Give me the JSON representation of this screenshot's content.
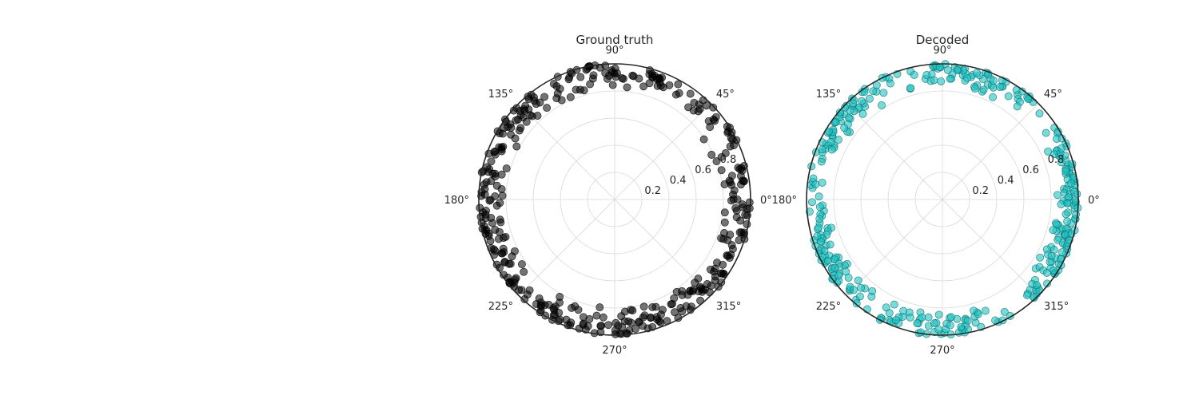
{
  "chart_data": [
    {
      "type": "scatter",
      "projection": "polar",
      "title": "Ground truth",
      "angle_tick_labels": [
        "0°",
        "45°",
        "90°",
        "135°",
        "180°",
        "225°",
        "270°",
        "315°"
      ],
      "radius_tick_labels": [
        "0.2",
        "0.4",
        "0.6",
        "0.8"
      ],
      "rlim": [
        0,
        1.0
      ],
      "grid": true,
      "marker_color": "#000000",
      "marker_alpha": 0.55,
      "radius_range_of_points": [
        0.78,
        1.0
      ],
      "angle_distribution": "roughly uniform over 0°–360°, points concentrated near the outer edge",
      "n_points_approx": 400
    },
    {
      "type": "scatter",
      "projection": "polar",
      "title": "Decoded",
      "angle_tick_labels": [
        "0°",
        "45°",
        "90°",
        "135°",
        "180°",
        "225°",
        "270°",
        "315°"
      ],
      "radius_tick_labels": [
        "0.2",
        "0.4",
        "0.6",
        "0.8"
      ],
      "rlim": [
        0,
        1.0
      ],
      "grid": true,
      "marker_color": "#1fc1c1",
      "marker_edge_color": "#0b6e6e",
      "marker_alpha": 0.6,
      "radius_range_of_points": [
        0.82,
        1.0
      ],
      "angle_clusters_deg": [
        {
          "center": 8,
          "spread": 25
        },
        {
          "center": 75,
          "spread": 35
        },
        {
          "center": 140,
          "spread": 30
        },
        {
          "center": 200,
          "spread": 30
        },
        {
          "center": 265,
          "spread": 35
        },
        {
          "center": 330,
          "spread": 25
        }
      ],
      "n_points_approx": 400
    }
  ]
}
